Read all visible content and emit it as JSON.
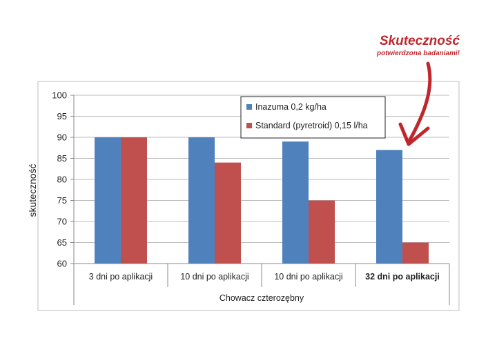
{
  "annotation": {
    "title": "Skuteczność",
    "subtitle": "potwierdzona badaniami!",
    "color": "#c0272d"
  },
  "chart_data": {
    "type": "bar",
    "title": "",
    "ylabel": "skuteczność",
    "group_label": "Chowacz czterozębny",
    "ylim": [
      60,
      100
    ],
    "yticks": [
      60,
      65,
      70,
      75,
      80,
      85,
      90,
      95,
      100
    ],
    "grid": true,
    "legend_position": "top-right",
    "categories": [
      "3 dni po aplikacji",
      "10 dni po aplikacji",
      "10 dni po aplikacji",
      "32 dni po aplikacji"
    ],
    "highlighted_category_index": 3,
    "series": [
      {
        "name": "Inazuma 0,2 kg/ha",
        "color": "#4f81bd",
        "values": [
          90,
          90,
          89,
          87
        ]
      },
      {
        "name": "Standard (pyretroid) 0,15 l/ha",
        "color": "#c0504d",
        "values": [
          90,
          84,
          75,
          65
        ]
      }
    ]
  }
}
